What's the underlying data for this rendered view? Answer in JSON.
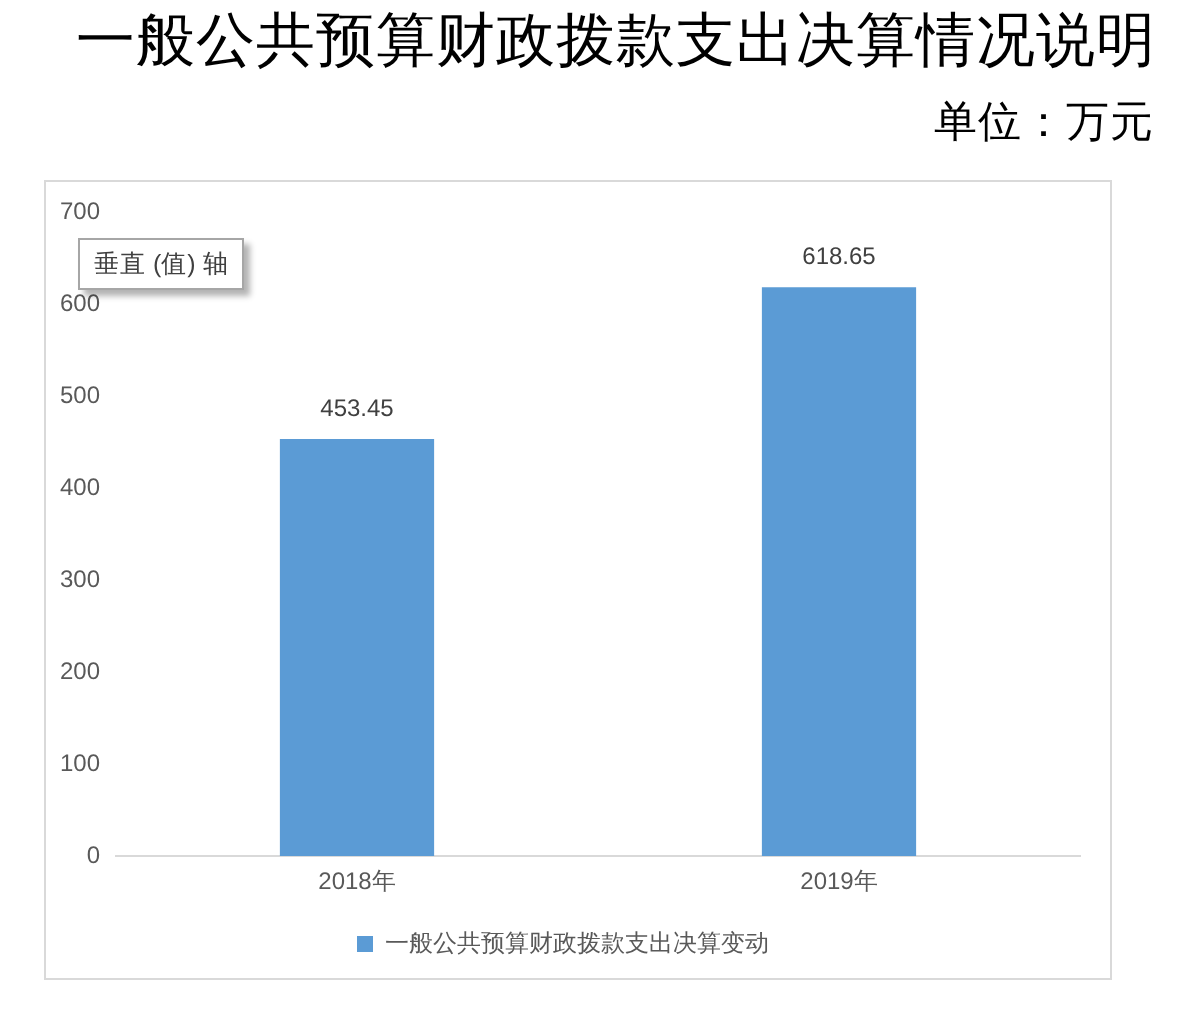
{
  "chart_data": {
    "type": "bar",
    "title": "一般公共预算财政拨款支出决算情况说明",
    "subtitle": "单位：万元",
    "categories": [
      "2018年",
      "2019年"
    ],
    "series": [
      {
        "name": "一般公共预算财政拨款支出决算变动",
        "color": "#5b9bd5",
        "values": [
          453.45,
          618.65
        ]
      }
    ],
    "ylim": [
      0,
      700
    ],
    "yticks": [
      0,
      100,
      200,
      300,
      400,
      500,
      600,
      700
    ],
    "grid": false,
    "legend": "bottom",
    "data_labels": true,
    "annotations": [
      "垂直 (值) 轴"
    ]
  }
}
